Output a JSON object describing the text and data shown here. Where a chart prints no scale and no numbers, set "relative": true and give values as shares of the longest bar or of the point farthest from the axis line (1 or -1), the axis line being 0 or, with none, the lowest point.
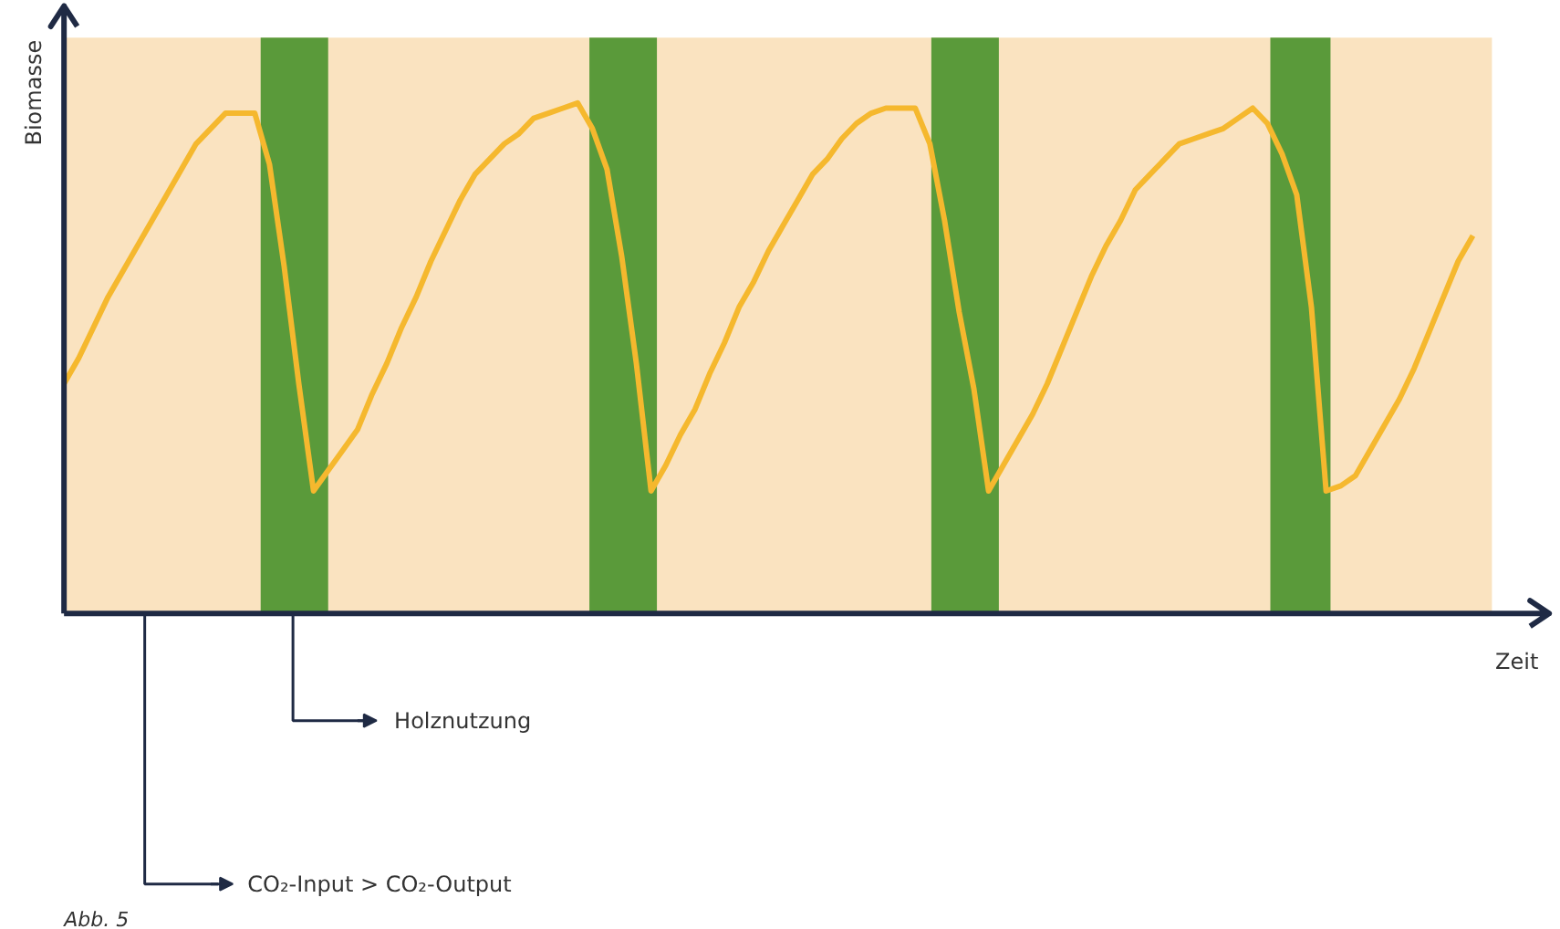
{
  "chart_data": {
    "type": "line",
    "relative": true,
    "xlabel": "Zeit",
    "ylabel": "Biomasse",
    "grid": false,
    "marker": "none",
    "line_style": "solid",
    "annotations": [
      "Holznutzung",
      "CO₂-Input > CO₂-Output",
      "Abb. 5"
    ],
    "categories": [
      null,
      null,
      null,
      null,
      null,
      null,
      null,
      null,
      null,
      null,
      null,
      null,
      null,
      null,
      null,
      null,
      null,
      null,
      null,
      null,
      null,
      null,
      null,
      null,
      null,
      null,
      null,
      null,
      null,
      null,
      null,
      null,
      null,
      null,
      null,
      null,
      null,
      null,
      null,
      null,
      null,
      null,
      null,
      null,
      null,
      null,
      null,
      null,
      null,
      null,
      null,
      null,
      null,
      null,
      null,
      null,
      null,
      null,
      null,
      null,
      null,
      null,
      null,
      null,
      null,
      null,
      null,
      null,
      null,
      null,
      null,
      null,
      null,
      null,
      null,
      null,
      null,
      null,
      null,
      null,
      null,
      null,
      null,
      null,
      null,
      null,
      null,
      null,
      null,
      null,
      null,
      null,
      null,
      null,
      null,
      null,
      null
    ],
    "series": [
      {
        "color": "#f5b82e",
        "values": [
          0.45,
          0.5,
          0.56,
          0.62,
          0.67,
          0.72,
          0.77,
          0.82,
          0.87,
          0.92,
          0.95,
          0.98,
          0.98,
          0.98,
          0.88,
          0.68,
          0.45,
          0.24,
          0.28,
          0.32,
          0.36,
          0.43,
          0.49,
          0.56,
          0.62,
          0.69,
          0.75,
          0.81,
          0.86,
          0.89,
          0.92,
          0.94,
          0.97,
          0.98,
          0.99,
          1.0,
          0.95,
          0.87,
          0.7,
          0.49,
          0.24,
          0.29,
          0.35,
          0.4,
          0.47,
          0.53,
          0.6,
          0.65,
          0.71,
          0.76,
          0.81,
          0.86,
          0.89,
          0.93,
          0.96,
          0.98,
          0.99,
          0.99,
          0.99,
          0.92,
          0.77,
          0.59,
          0.44,
          0.24,
          0.29,
          0.34,
          0.39,
          0.45,
          0.52,
          0.59,
          0.66,
          0.72,
          0.77,
          0.83,
          0.86,
          0.89,
          0.92,
          0.93,
          0.94,
          0.95,
          0.97,
          0.99,
          0.96,
          0.9,
          0.82,
          0.6,
          0.24,
          0.25,
          0.27,
          0.32,
          0.37,
          0.42,
          0.48,
          0.55,
          0.62,
          0.69,
          0.74
        ]
      }
    ]
  }
}
